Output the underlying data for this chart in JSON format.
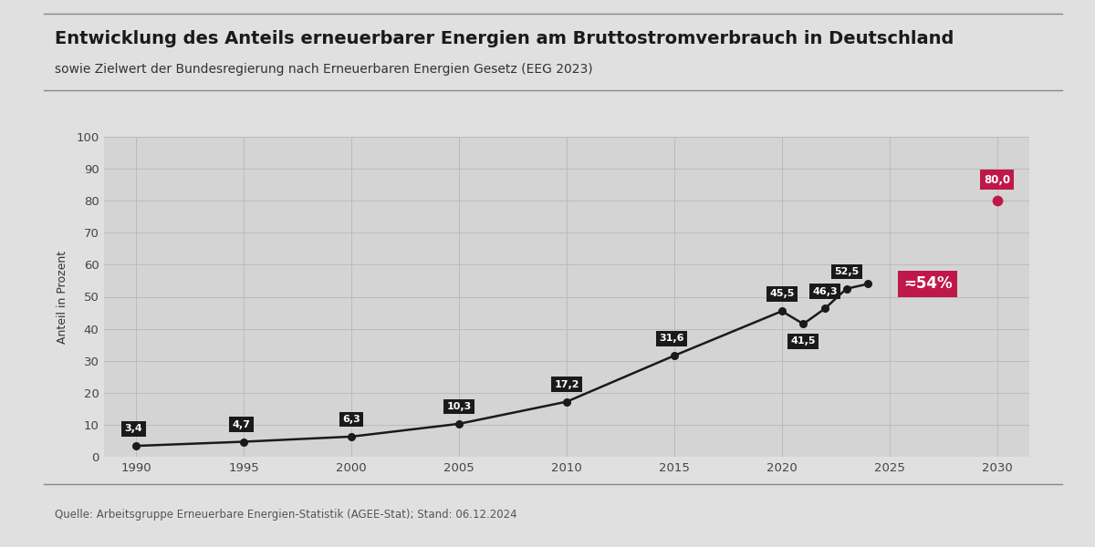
{
  "title": "Entwicklung des Anteils erneuerbarer Energien am Bruttostromverbrauch in Deutschland",
  "subtitle": "sowie Zielwert der Bundesregierung nach Erneuerbaren Energien Gesetz (EEG 2023)",
  "ylabel": "Anteil in Prozent",
  "source": "Quelle: Arbeitsgruppe Erneuerbare Energien-Statistik (AGEE-Stat); Stand: 06.12.2024",
  "fig_bg_color": "#e0e0e0",
  "plot_bg_color": "#d4d4d4",
  "line_color": "#1a1a1a",
  "label_bg_color": "#1a1a1a",
  "label_text_color": "#ffffff",
  "target_dot_color": "#c0174a",
  "target_label_bg": "#c0174a",
  "target_label_fg": "#ffffff",
  "approx_bg_color": "#c0174a",
  "approx_text_color": "#ffffff",
  "grid_color": "#bcbcbc",
  "data_years": [
    1990,
    1995,
    2000,
    2005,
    2010,
    2015,
    2020,
    2021,
    2022,
    2023,
    2024
  ],
  "data_values": [
    3.4,
    4.7,
    6.3,
    10.3,
    17.2,
    31.6,
    45.5,
    41.5,
    46.3,
    52.5,
    54.0
  ],
  "approx_label": "≂54%",
  "approx_year": 2024,
  "approx_value": 54.0,
  "target_year": 2030,
  "target_value": 80.0,
  "target_label": "80,0",
  "xlim": [
    1988.5,
    2031.5
  ],
  "ylim": [
    0,
    100
  ],
  "yticks": [
    0,
    10,
    20,
    30,
    40,
    50,
    60,
    70,
    80,
    90,
    100
  ],
  "xticks": [
    1990,
    1995,
    2000,
    2005,
    2010,
    2015,
    2020,
    2025,
    2030
  ],
  "title_fontsize": 14,
  "subtitle_fontsize": 10,
  "source_fontsize": 8.5,
  "ylabel_fontsize": 9,
  "tick_fontsize": 9.5,
  "label_fontsize": 8,
  "approx_fontsize": 12,
  "target_label_fontsize": 8.5
}
